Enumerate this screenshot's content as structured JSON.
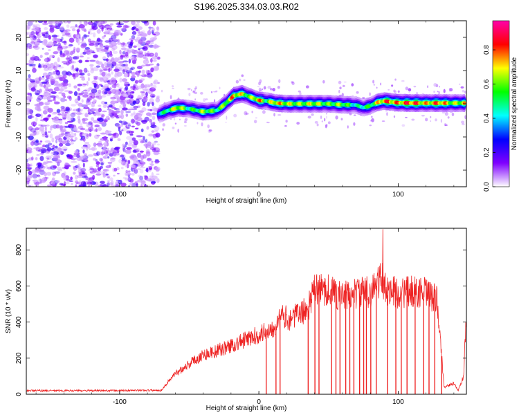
{
  "title": "S196.2025.334.03.03.R02",
  "chart_data": [
    {
      "type": "heatmap",
      "xlabel": "Height of straight line (km)",
      "ylabel": "Frequency (Hz)",
      "xlim": [
        -167,
        149
      ],
      "ylim": [
        -25,
        25
      ],
      "xticks": [
        -100,
        0,
        100
      ],
      "yticks": [
        -20,
        -10,
        0,
        10,
        20
      ],
      "colorbar": {
        "label": "Normalized spectral amplitude",
        "range": [
          0.0,
          0.97
        ],
        "ticks": [
          0.0,
          0.2,
          0.4,
          0.6,
          0.8
        ],
        "tick_labels": [
          "0.0",
          "0.2",
          "0.4",
          "0.6",
          "0.8"
        ],
        "colors": [
          "#ffffff",
          "#7f00ff",
          "#0000ff",
          "#00ffff",
          "#00ff00",
          "#ffff00",
          "#ff0000",
          "#ff00aa"
        ]
      },
      "noise_region_x": [
        -167,
        -72
      ],
      "ridge": {
        "x": [
          -72,
          -65,
          -58,
          -50,
          -40,
          -30,
          -24,
          -18,
          -12,
          -6,
          0,
          6,
          12,
          20,
          30,
          40,
          50,
          60,
          70,
          75,
          80,
          85,
          90,
          100,
          110,
          120,
          130,
          140,
          148
        ],
        "y": [
          -3.2,
          -2.0,
          -1.2,
          -1.5,
          -2.4,
          -2.0,
          0.0,
          2.4,
          3.0,
          2.0,
          1.0,
          0.8,
          0.2,
          0.0,
          0.0,
          0.0,
          0.0,
          -0.3,
          -0.4,
          -1.2,
          -0.6,
          0.4,
          0.8,
          0.3,
          0.2,
          0.2,
          0.2,
          0.2,
          0.2
        ],
        "amplitude": [
          0.45,
          0.6,
          0.8,
          0.55,
          0.7,
          0.6,
          0.7,
          0.85,
          0.75,
          0.65,
          0.9,
          0.6,
          0.85,
          0.75,
          0.7,
          0.75,
          0.65,
          0.7,
          0.5,
          0.55,
          0.6,
          0.75,
          0.9,
          0.85,
          0.95,
          0.8,
          0.9,
          0.7,
          0.8
        ]
      }
    },
    {
      "type": "line",
      "xlabel": "Height of straight line (km)",
      "ylabel": "SNR (10 * v/v)",
      "xlim": [
        -167,
        149
      ],
      "ylim": [
        0,
        920
      ],
      "xticks": [
        -100,
        0,
        100
      ],
      "yticks": [
        0,
        200,
        400,
        600,
        800
      ],
      "color": "#ee2222",
      "envelope": {
        "x": [
          -167,
          -110,
          -70,
          -62,
          -50,
          -40,
          -30,
          -20,
          -10,
          0,
          10,
          17,
          22,
          30,
          35,
          40,
          50,
          60,
          70,
          80,
          88,
          92,
          100,
          110,
          120,
          128,
          133,
          140,
          143,
          147,
          149
        ],
        "y": [
          20,
          20,
          22,
          100,
          170,
          220,
          240,
          270,
          300,
          330,
          370,
          430,
          420,
          450,
          470,
          580,
          580,
          540,
          560,
          570,
          640,
          580,
          560,
          570,
          560,
          520,
          40,
          60,
          20,
          100,
          480
        ]
      },
      "dropouts_x": [
        5,
        12,
        15,
        35,
        40,
        43,
        52,
        55,
        58,
        62,
        65,
        68,
        72,
        75,
        77,
        80,
        84,
        92,
        98,
        102,
        106,
        112,
        118,
        122,
        126,
        131
      ]
    }
  ]
}
